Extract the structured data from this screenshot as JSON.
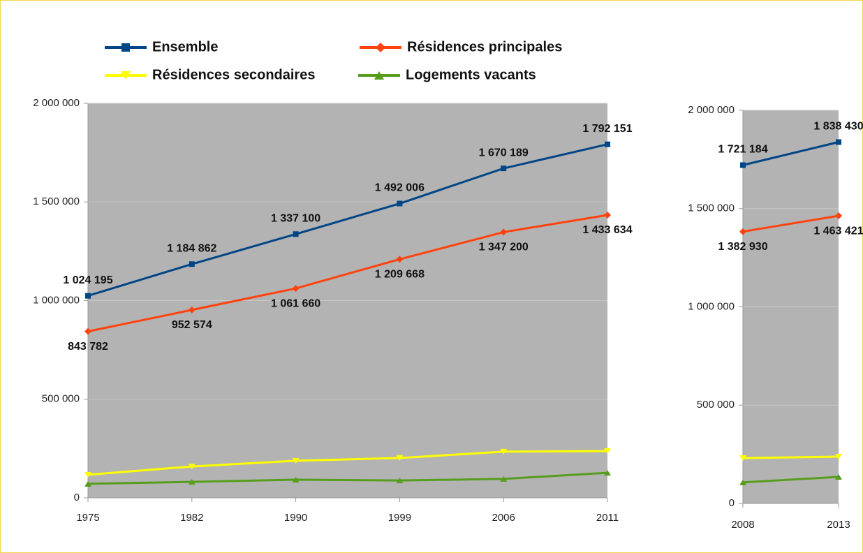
{
  "chart_data": [
    {
      "type": "line",
      "categories": [
        "1975",
        "1982",
        "1990",
        "1999",
        "2006",
        "2011"
      ],
      "ylim": [
        0,
        2000000
      ],
      "yticks": [
        0,
        {
          "value": 500000,
          "label": "500 000"
        },
        {
          "value": 1000000,
          "label": "1 000 000"
        },
        {
          "value": 1500000,
          "label": "1 500 000"
        },
        {
          "value": 2000000,
          "label": "2 000 000"
        }
      ],
      "grid": true,
      "legend": "top",
      "series": [
        {
          "name": "Ensemble",
          "color": "#004586",
          "marker": "square",
          "label_side": "above",
          "values": [
            1024195,
            1184862,
            1337100,
            1492006,
            1670189,
            1792151
          ],
          "value_labels": [
            "1 024 195",
            "1 184 862",
            "1 337 100",
            "1 492 006",
            "1 670 189",
            "1 792 151"
          ]
        },
        {
          "name": "Résidences principales",
          "color": "#ff420e",
          "marker": "diamond",
          "label_side": "below",
          "values": [
            843782,
            952574,
            1061660,
            1209668,
            1347200,
            1433634
          ],
          "value_labels": [
            "843 782",
            "952 574",
            "1 061 660",
            "1 209 668",
            "1 347 200",
            "1 433 634"
          ]
        },
        {
          "name": "Résidences secondaires",
          "color": "#ffff00",
          "marker": "triangle-down",
          "values": [
            117000,
            159000,
            188000,
            202000,
            234000,
            237000
          ]
        },
        {
          "name": "Logements vacants",
          "color": "#579d1c",
          "marker": "triangle-up",
          "values": [
            71000,
            81000,
            92000,
            88000,
            96000,
            127000
          ]
        }
      ]
    },
    {
      "type": "line",
      "categories": [
        "2008",
        "2013"
      ],
      "ylim": [
        0,
        2000000
      ],
      "yticks": [
        0,
        {
          "value": 500000,
          "label": "500 000"
        },
        {
          "value": 1000000,
          "label": "1 000 000"
        },
        {
          "value": 1500000,
          "label": "1 500 000"
        },
        {
          "value": 2000000,
          "label": "2 000 000"
        }
      ],
      "grid": true,
      "series": [
        {
          "color": "#004586",
          "marker": "square",
          "label_side": "above",
          "values": [
            1721184,
            1838430
          ],
          "value_labels": [
            "1 721 184",
            "1 838 430"
          ]
        },
        {
          "color": "#ff420e",
          "marker": "diamond",
          "label_side": "below",
          "values": [
            1382930,
            1463421
          ],
          "value_labels": [
            "1 382 930",
            "1 463 421"
          ]
        },
        {
          "color": "#ffff00",
          "marker": "triangle-down",
          "values": [
            231000,
            238000
          ]
        },
        {
          "color": "#579d1c",
          "marker": "triangle-up",
          "values": [
            107000,
            135000
          ]
        }
      ]
    }
  ]
}
